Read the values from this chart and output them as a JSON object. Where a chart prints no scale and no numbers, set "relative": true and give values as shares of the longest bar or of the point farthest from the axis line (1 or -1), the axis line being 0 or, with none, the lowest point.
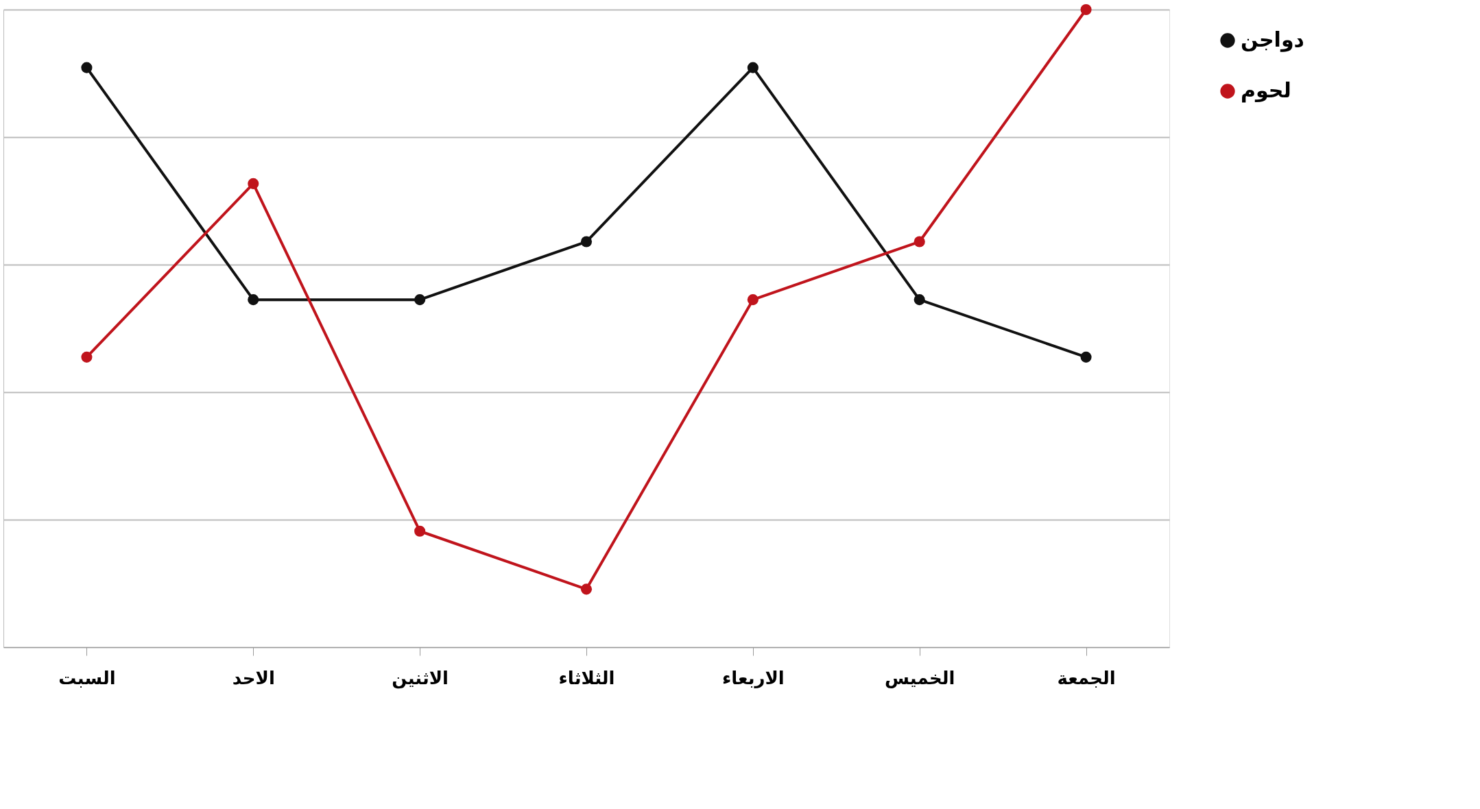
{
  "chart_data": {
    "type": "line",
    "relative": true,
    "categories": [
      "السبت",
      "الاحد",
      "الاثنين",
      "الثلاثاء",
      "الاربعاء",
      "الخميس",
      "الجمعة"
    ],
    "series": [
      {
        "name": "دواجن",
        "color": "#111111",
        "values": [
          0.909,
          0.545,
          0.545,
          0.636,
          0.909,
          0.545,
          0.455
        ]
      },
      {
        "name": "لحوم",
        "color": "#c0141c",
        "values": [
          0.455,
          0.727,
          0.182,
          0.091,
          0.545,
          0.636,
          1
        ]
      }
    ],
    "marker": "circle",
    "grid": "y",
    "legend": "right",
    "line_style": "solid"
  }
}
